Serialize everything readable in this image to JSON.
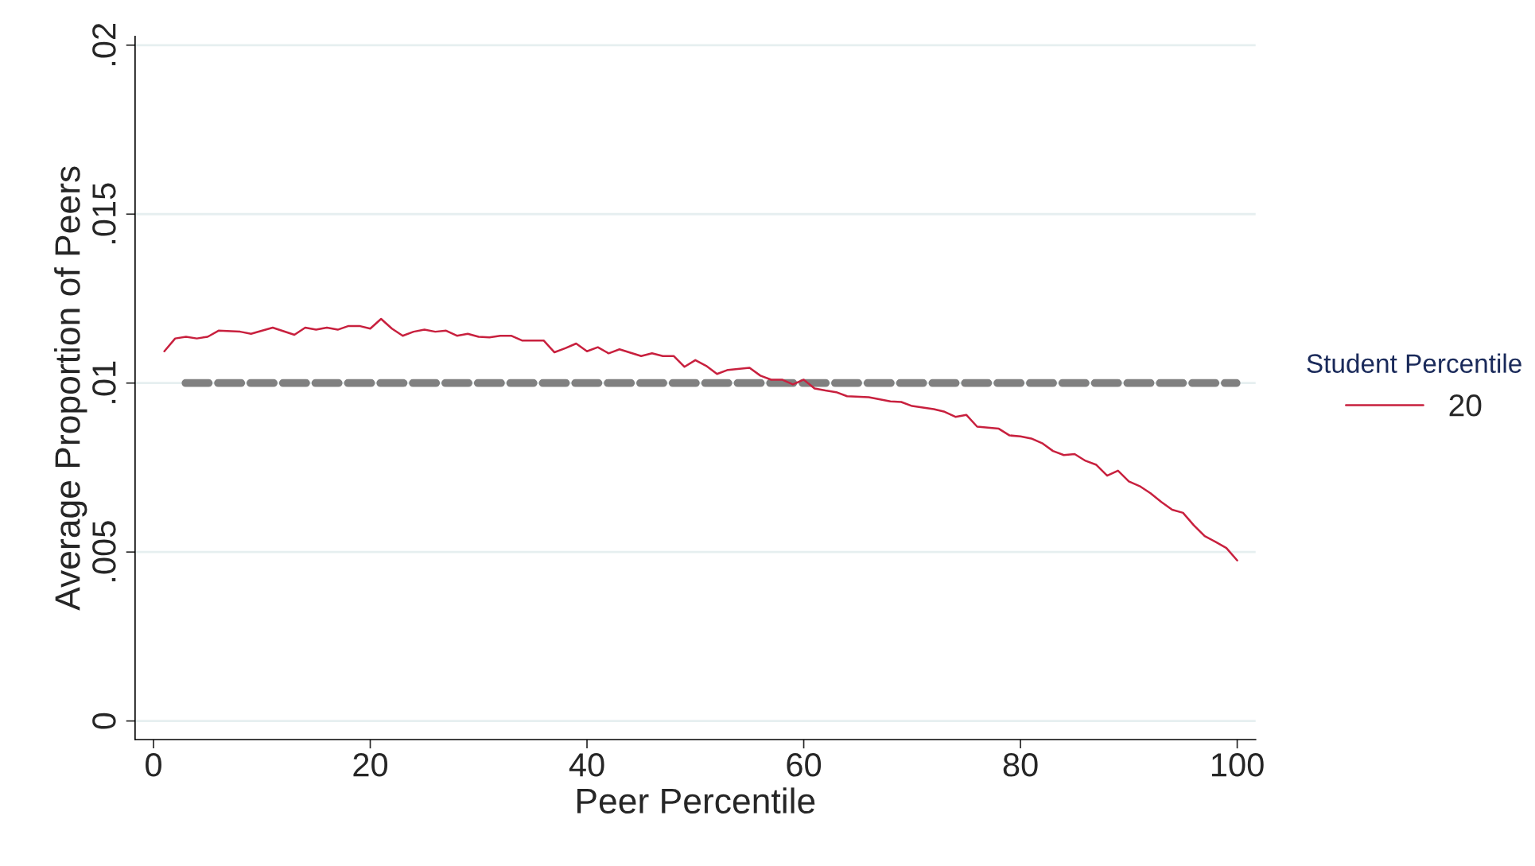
{
  "chart_data": {
    "type": "line",
    "xlabel": "Peer Percentile",
    "ylabel": "Average Proportion of Peers",
    "legend_title": "Student Percentile",
    "xlim": [
      -1.7,
      101.7
    ],
    "xticks": [
      0,
      20,
      40,
      60,
      80,
      100
    ],
    "ylim": [
      -0.00055,
      0.02026
    ],
    "yticks": [
      {
        "value": 0,
        "label": "0"
      },
      {
        "value": 0.005,
        "label": ".005"
      },
      {
        "value": 0.01,
        "label": ".01"
      },
      {
        "value": 0.015,
        "label": ".015"
      },
      {
        "value": 0.02,
        "label": ".02"
      }
    ],
    "grid": "y",
    "legend": "right",
    "line_style": "solid",
    "marker": "none",
    "ref_lines": [
      {
        "axis": "y",
        "value": 0.01,
        "color": "#808080",
        "line_style": "dashed"
      }
    ],
    "series": [
      {
        "name": "20",
        "color": "#c8203e",
        "x": [
          1,
          2,
          3,
          4,
          5,
          6,
          8,
          9,
          11,
          13,
          14,
          15,
          16,
          17,
          18,
          19,
          20,
          21,
          22,
          23,
          24,
          25,
          26,
          27,
          28,
          29,
          30,
          31,
          32,
          33,
          34,
          36,
          37,
          38,
          39,
          40,
          41,
          42,
          43,
          45,
          46,
          47,
          48,
          49,
          50,
          51,
          52,
          53,
          55,
          56,
          57,
          58,
          59,
          60,
          61,
          62,
          63,
          64,
          66,
          68,
          69,
          70,
          72,
          73,
          74,
          75,
          76,
          77,
          78,
          79,
          80,
          81,
          82,
          83,
          84,
          85,
          86,
          87,
          88,
          89,
          90,
          91,
          92,
          93,
          94,
          95,
          96,
          97,
          98,
          99,
          100
        ],
        "values": [
          0.01094,
          0.01132,
          0.01137,
          0.01132,
          0.01137,
          0.01155,
          0.01152,
          0.01146,
          0.01164,
          0.01143,
          0.01164,
          0.01158,
          0.01164,
          0.01158,
          0.01169,
          0.01169,
          0.01161,
          0.0119,
          0.01161,
          0.0114,
          0.01152,
          0.01158,
          0.01152,
          0.01155,
          0.0114,
          0.01146,
          0.01137,
          0.01135,
          0.0114,
          0.0114,
          0.01126,
          0.01126,
          0.01091,
          0.01103,
          0.01117,
          0.01094,
          0.01106,
          0.01088,
          0.011,
          0.0108,
          0.01088,
          0.0108,
          0.0108,
          0.01048,
          0.01068,
          0.01051,
          0.01027,
          0.01039,
          0.01045,
          0.01022,
          0.0101,
          0.0101,
          0.00996,
          0.0101,
          0.00984,
          0.00978,
          0.00973,
          0.00961,
          0.00958,
          0.00946,
          0.00944,
          0.00932,
          0.00923,
          0.00915,
          0.009,
          0.00906,
          0.00871,
          0.00868,
          0.00865,
          0.00845,
          0.00842,
          0.00836,
          0.00822,
          0.00799,
          0.00787,
          0.0079,
          0.0077,
          0.00758,
          0.00726,
          0.00741,
          0.00709,
          0.00695,
          0.00674,
          0.00648,
          0.00625,
          0.00616,
          0.00579,
          0.00547,
          0.0053,
          0.00512,
          0.00475
        ]
      }
    ]
  }
}
